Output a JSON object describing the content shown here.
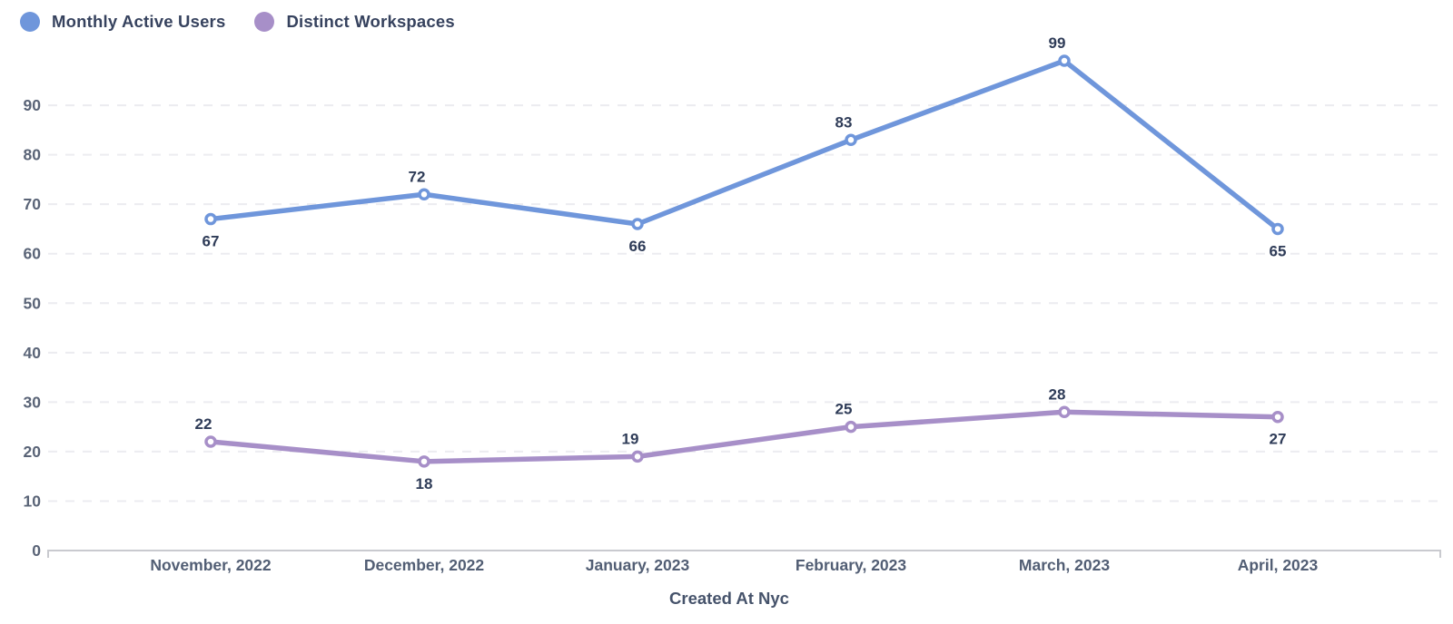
{
  "chart_data": {
    "type": "line",
    "title": "",
    "xlabel": "Created At Nyc",
    "ylabel": "",
    "categories": [
      "November, 2022",
      "December, 2022",
      "January, 2023",
      "February, 2023",
      "March, 2023",
      "April, 2023"
    ],
    "series": [
      {
        "name": "Monthly Active Users",
        "color": "#6f96db",
        "values": [
          67,
          72,
          66,
          83,
          99,
          65
        ],
        "label_positions": [
          "below",
          "above",
          "below",
          "above",
          "above",
          "below"
        ]
      },
      {
        "name": "Distinct Workspaces",
        "color": "#a78fc8",
        "values": [
          22,
          18,
          19,
          25,
          28,
          27
        ],
        "label_positions": [
          "above",
          "below",
          "above",
          "above",
          "above",
          "below"
        ]
      }
    ],
    "y_ticks": [
      0,
      10,
      20,
      30,
      40,
      50,
      60,
      70,
      80,
      90
    ],
    "ylim": [
      0,
      100
    ],
    "grid": "dashed-horizontal",
    "legend_position": "top-left",
    "marker_style": "open-circle",
    "colors": {
      "grid": "#ececf0",
      "axis": "#c9cacf",
      "tick_text": "#5a6477",
      "label_text": "#2f3c58"
    }
  }
}
